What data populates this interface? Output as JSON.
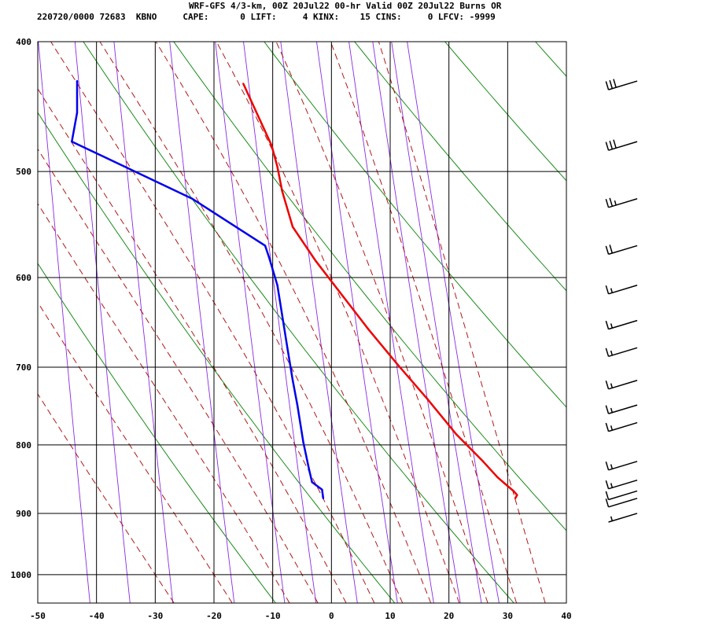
{
  "header": {
    "title": "WRF-GFS 4/3-km, 00Z 20Jul22 00-hr Valid 00Z 20Jul22 Burns OR",
    "stats": "220720/0000 72683  KBNO     CAPE:      0 LIFT:     4 KINX:    15 CINS:     0 LFCV: -9999"
  },
  "colors": {
    "temperature": "#ee0000",
    "dewpoint": "#0000ee",
    "isotherm": "#000000",
    "isobar": "#000000",
    "dry_adiabat": "#008000",
    "moist_adiabat": "#aa0000",
    "mixing_ratio": "#8a2be2",
    "barb": "#000000"
  },
  "chart_data": {
    "type": "line",
    "subtype": "skew-T log-P sounding",
    "title": "",
    "xlabel": "",
    "ylabel": "",
    "xlim": [
      -50,
      40
    ],
    "ylim_pressure_hPa": [
      1050,
      400
    ],
    "y_scale": "log",
    "x_ticks": [
      -50,
      -40,
      -30,
      -20,
      -10,
      0,
      10,
      20,
      30,
      40
    ],
    "pressure_ticks": [
      400,
      500,
      600,
      700,
      800,
      900,
      1000
    ],
    "isotherm_skew": "none",
    "grid": true,
    "series": [
      {
        "key": "temperature",
        "points": [
          {
            "x": 31.3,
            "p": 877
          },
          {
            "x": 31.6,
            "p": 872
          },
          {
            "x": 31.0,
            "p": 866
          },
          {
            "x": 29.5,
            "p": 855
          },
          {
            "x": 28.3,
            "p": 846
          },
          {
            "x": 25.8,
            "p": 823
          },
          {
            "x": 21.3,
            "p": 786
          },
          {
            "x": 16.4,
            "p": 740
          },
          {
            "x": 11.4,
            "p": 698
          },
          {
            "x": 6.2,
            "p": 655
          },
          {
            "x": 2.0,
            "p": 620
          },
          {
            "x": -2.7,
            "p": 583
          },
          {
            "x": -6.6,
            "p": 550
          },
          {
            "x": -8.4,
            "p": 517
          },
          {
            "x": -9.2,
            "p": 496
          },
          {
            "x": -10.2,
            "p": 478
          },
          {
            "x": -15.0,
            "p": 430
          }
        ]
      },
      {
        "key": "dewpoint",
        "points": [
          {
            "x": -1.4,
            "p": 877
          },
          {
            "x": -1.6,
            "p": 864
          },
          {
            "x": -3.3,
            "p": 853
          },
          {
            "x": -3.8,
            "p": 835
          },
          {
            "x": -4.8,
            "p": 796
          },
          {
            "x": -5.8,
            "p": 747
          },
          {
            "x": -6.6,
            "p": 716
          },
          {
            "x": -7.5,
            "p": 677
          },
          {
            "x": -9.2,
            "p": 608
          },
          {
            "x": -10.6,
            "p": 580
          },
          {
            "x": -11.3,
            "p": 568
          },
          {
            "x": -23.7,
            "p": 524
          },
          {
            "x": -44.2,
            "p": 475
          },
          {
            "x": -43.3,
            "p": 452
          },
          {
            "x": -43.3,
            "p": 428
          }
        ]
      }
    ],
    "background_lines": {
      "isotherms_C": [
        -40,
        -30,
        -20,
        -10,
        0,
        10,
        20,
        30
      ],
      "dry_adiabats_K": [
        260,
        280,
        300,
        320,
        340,
        360,
        380,
        400,
        420,
        440
      ],
      "moist_adiabats_C": [
        -30,
        -20,
        -10,
        -5,
        0,
        5,
        10,
        15,
        20,
        25,
        30,
        35
      ],
      "mixing_ratio_gkg": [
        0.1,
        0.2,
        0.4,
        1,
        2,
        3,
        5,
        8,
        12,
        16,
        20,
        24
      ]
    },
    "wind_barbs": [
      {
        "p": 428,
        "speed_kt": 30
      },
      {
        "p": 475,
        "speed_kt": 30
      },
      {
        "p": 524,
        "speed_kt": 25
      },
      {
        "p": 568,
        "speed_kt": 20
      },
      {
        "p": 608,
        "speed_kt": 15
      },
      {
        "p": 646,
        "speed_kt": 15
      },
      {
        "p": 677,
        "speed_kt": 15
      },
      {
        "p": 716,
        "speed_kt": 15
      },
      {
        "p": 747,
        "speed_kt": 15
      },
      {
        "p": 770,
        "speed_kt": 15
      },
      {
        "p": 823,
        "speed_kt": 15
      },
      {
        "p": 850,
        "speed_kt": 15
      },
      {
        "p": 866,
        "speed_kt": 10
      },
      {
        "p": 877,
        "speed_kt": 10
      },
      {
        "p": 900,
        "speed_kt": 5
      }
    ]
  }
}
